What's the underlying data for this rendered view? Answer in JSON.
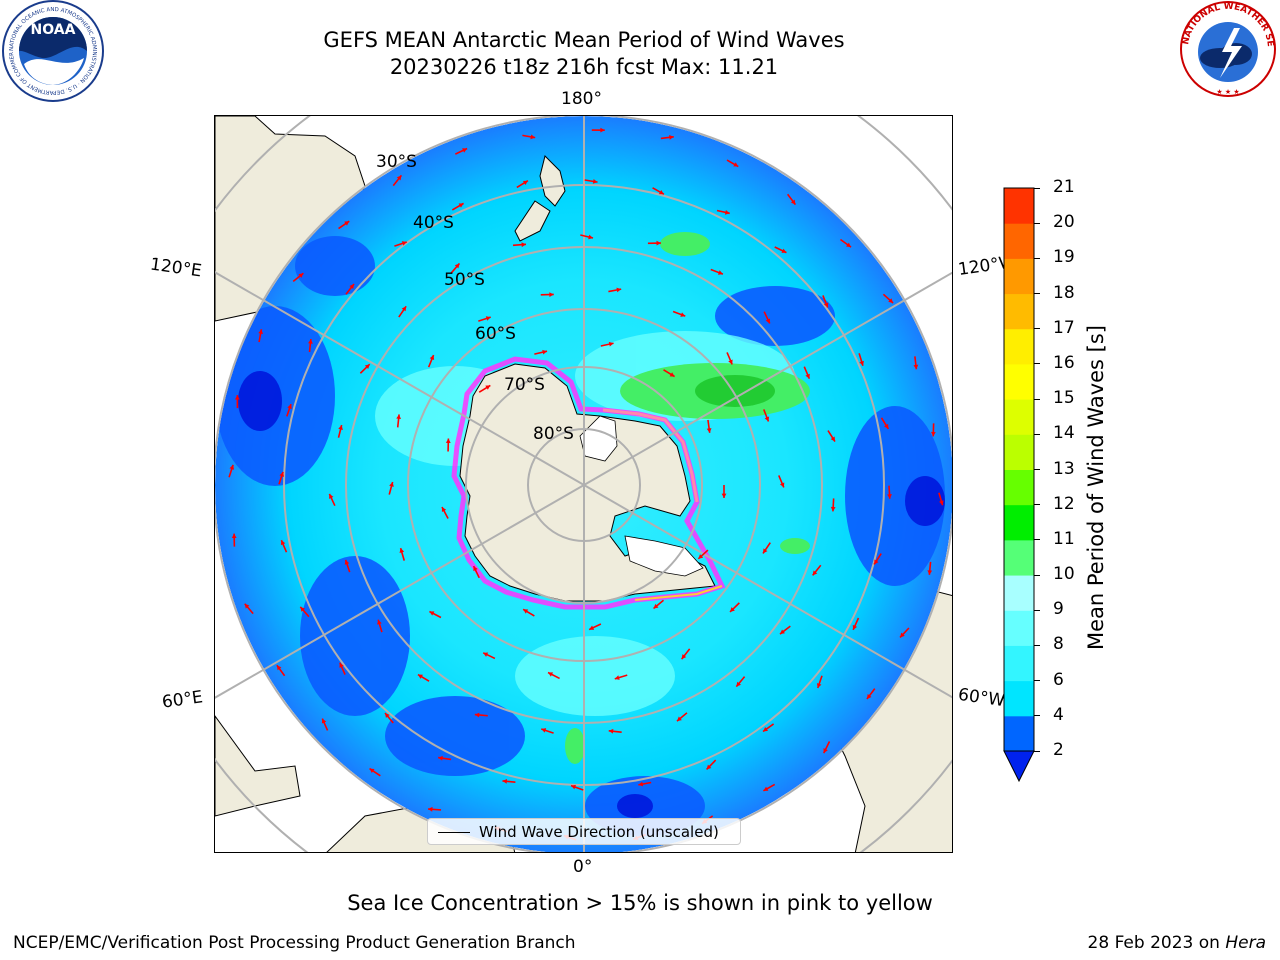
{
  "header": {
    "title_line1": "GEFS MEAN Antarctic Mean Period of Wind Waves",
    "title_line2": "20230226 t18z 216h fcst   Max: 11.21"
  },
  "logos": {
    "left_text": "NOAA",
    "left_ring_text": "NATIONAL OCEANIC AND ATMOSPHERIC ADMINISTRATION · U.S. DEPARTMENT OF COMMERCE",
    "right_ring_text": "NATIONAL WEATHER SERVICE"
  },
  "map": {
    "projection": "south-polar-stereographic",
    "longitude_labels": {
      "top": "180°",
      "bottom": "0°",
      "upper_left": "120°E",
      "upper_right": "120°W",
      "lower_left": "60°E",
      "lower_right": "60°W"
    },
    "latitude_labels": [
      "30°S",
      "40°S",
      "50°S",
      "60°S",
      "70°S",
      "80°S"
    ],
    "legend_label": "Wind Wave Direction (unscaled)",
    "arrow_color": "#ff0000",
    "land_color": "#efecdc",
    "ice_colors": [
      "#ff33ff",
      "#ff66aa",
      "#ffcc00"
    ]
  },
  "colorbar": {
    "label": "Mean Period of Wind Waves [s]",
    "ticks": [
      "2",
      "4",
      "6",
      "8",
      "9",
      "10",
      "11",
      "12",
      "13",
      "14",
      "15",
      "16",
      "17",
      "18",
      "19",
      "20",
      "21"
    ],
    "colors": [
      "#0066ff",
      "#00e5ff",
      "#33f5ff",
      "#66ffff",
      "#a8ffff",
      "#55ff77",
      "#00ee00",
      "#66ff00",
      "#bbff00",
      "#ddff00",
      "#ffff00",
      "#ffee00",
      "#ffbb00",
      "#ff9900",
      "#ff6600",
      "#ff3300",
      "#ff0000"
    ],
    "under_color": "#0022ee"
  },
  "footer": {
    "note": "Sea Ice Concentration > 15% is shown in pink to yellow",
    "left": "NCEP/EMC/Verification Post Processing Product Generation Branch",
    "right_date": "28 Feb 2023 on ",
    "right_host": "Hera"
  }
}
